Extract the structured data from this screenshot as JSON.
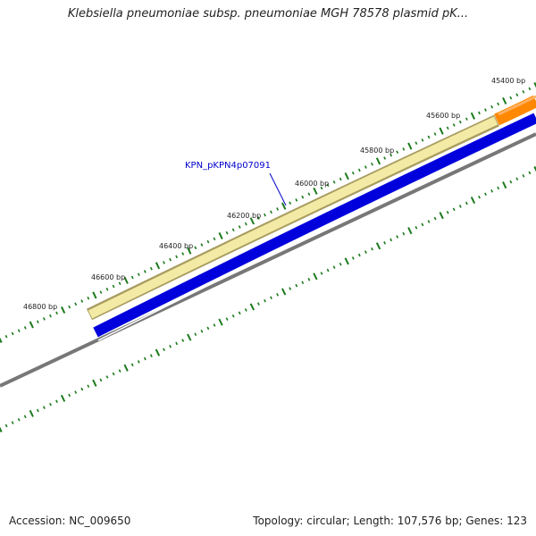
{
  "title": "Klebsiella pneumoniae subsp. pneumoniae MGH 78578 plasmid pK...",
  "ticks": [
    {
      "label": "45400 bp"
    },
    {
      "label": "45600 bp"
    },
    {
      "label": "45800 bp"
    },
    {
      "label": "46000 bp"
    },
    {
      "label": "46200 bp"
    },
    {
      "label": "46400 bp"
    },
    {
      "label": "46600 bp"
    },
    {
      "label": "46800 bp"
    }
  ],
  "gene_label": "KPN_pKPN4p07091",
  "footer": {
    "accession": "Accession: NC_009650",
    "summary": "Topology: circular; Length: 107,576 bp; Genes: 123"
  },
  "colors": {
    "highlighted_feature": "#f3eaa5",
    "feature_outline": "#a89c60",
    "cds_strand": "#0000dd",
    "orange_feature": "#ff8800",
    "backbone": "#777777",
    "tick_marks": "#1a7a1a",
    "gene_label": "#0000cc"
  }
}
